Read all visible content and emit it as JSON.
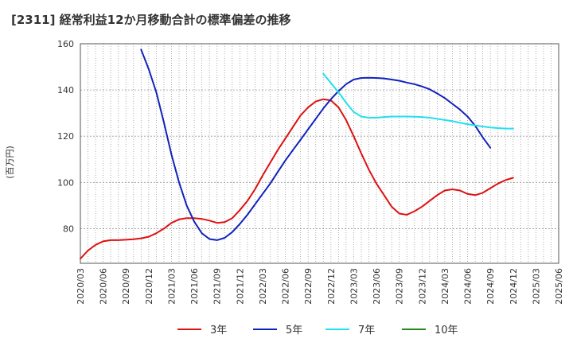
{
  "chart_data": {
    "type": "line",
    "title": "[2311]  経常利益12か月移動合計の標準偏差の推移",
    "ylabel": "(百万円)",
    "xlabel": "",
    "ylim": [
      65,
      160
    ],
    "yticks": [
      80,
      100,
      120,
      140,
      160
    ],
    "xticks": [
      "2020/03",
      "2020/06",
      "2020/09",
      "2020/12",
      "2021/03",
      "2021/06",
      "2021/09",
      "2021/12",
      "2022/03",
      "2022/06",
      "2022/09",
      "2022/12",
      "2023/03",
      "2023/06",
      "2023/09",
      "2023/12",
      "2024/03",
      "2024/06",
      "2024/09",
      "2024/12",
      "2025/03",
      "2025/06"
    ],
    "grid": true,
    "legend_position": "bottom",
    "series": [
      {
        "name": "3年",
        "color": "#dd1111",
        "points": [
          [
            "2020/03",
            67
          ],
          [
            "2020/04",
            70.5
          ],
          [
            "2020/05",
            73
          ],
          [
            "2020/06",
            74.5
          ],
          [
            "2020/07",
            75
          ],
          [
            "2020/08",
            75
          ],
          [
            "2020/09",
            75.2
          ],
          [
            "2020/10",
            75.4
          ],
          [
            "2020/11",
            75.8
          ],
          [
            "2020/12",
            76.5
          ],
          [
            "2021/01",
            78
          ],
          [
            "2021/02",
            80
          ],
          [
            "2021/03",
            82.5
          ],
          [
            "2021/04",
            84
          ],
          [
            "2021/05",
            84.5
          ],
          [
            "2021/06",
            84.5
          ],
          [
            "2021/07",
            84.2
          ],
          [
            "2021/08",
            83.5
          ],
          [
            "2021/09",
            82.5
          ],
          [
            "2021/10",
            82.8
          ],
          [
            "2021/11",
            84.5
          ],
          [
            "2021/12",
            88
          ],
          [
            "2022/01",
            92
          ],
          [
            "2022/02",
            97
          ],
          [
            "2022/03",
            103
          ],
          [
            "2022/04",
            108.5
          ],
          [
            "2022/05",
            114
          ],
          [
            "2022/06",
            119
          ],
          [
            "2022/07",
            124
          ],
          [
            "2022/08",
            129
          ],
          [
            "2022/09",
            132.5
          ],
          [
            "2022/10",
            135
          ],
          [
            "2022/11",
            136
          ],
          [
            "2022/12",
            135.5
          ],
          [
            "2023/01",
            132.5
          ],
          [
            "2023/02",
            127
          ],
          [
            "2023/03",
            120
          ],
          [
            "2023/04",
            112.5
          ],
          [
            "2023/05",
            105.5
          ],
          [
            "2023/06",
            99.5
          ],
          [
            "2023/07",
            94.5
          ],
          [
            "2023/08",
            89.5
          ],
          [
            "2023/09",
            86.5
          ],
          [
            "2023/10",
            86
          ],
          [
            "2023/11",
            87.5
          ],
          [
            "2023/12",
            89.5
          ],
          [
            "2024/01",
            92
          ],
          [
            "2024/02",
            94.5
          ],
          [
            "2024/03",
            96.5
          ],
          [
            "2024/04",
            97
          ],
          [
            "2024/05",
            96.5
          ],
          [
            "2024/06",
            95
          ],
          [
            "2024/07",
            94.5
          ],
          [
            "2024/08",
            95.5
          ],
          [
            "2024/09",
            97.5
          ],
          [
            "2024/10",
            99.5
          ],
          [
            "2024/11",
            101
          ],
          [
            "2024/12",
            102
          ]
        ]
      },
      {
        "name": "5年",
        "color": "#1122bb",
        "points": [
          [
            "2020/11",
            157.5
          ],
          [
            "2020/12",
            149
          ],
          [
            "2021/01",
            139
          ],
          [
            "2021/02",
            126
          ],
          [
            "2021/03",
            112
          ],
          [
            "2021/04",
            100
          ],
          [
            "2021/05",
            90
          ],
          [
            "2021/06",
            83
          ],
          [
            "2021/07",
            78
          ],
          [
            "2021/08",
            75.5
          ],
          [
            "2021/09",
            75
          ],
          [
            "2021/10",
            76
          ],
          [
            "2021/11",
            78.5
          ],
          [
            "2021/12",
            82
          ],
          [
            "2022/01",
            86
          ],
          [
            "2022/02",
            90.5
          ],
          [
            "2022/03",
            95
          ],
          [
            "2022/04",
            99.5
          ],
          [
            "2022/05",
            104.5
          ],
          [
            "2022/06",
            109.5
          ],
          [
            "2022/07",
            114
          ],
          [
            "2022/08",
            118.5
          ],
          [
            "2022/09",
            123
          ],
          [
            "2022/10",
            127.5
          ],
          [
            "2022/11",
            132
          ],
          [
            "2022/12",
            136
          ],
          [
            "2023/01",
            139.5
          ],
          [
            "2023/02",
            142.5
          ],
          [
            "2023/03",
            144.5
          ],
          [
            "2023/04",
            145.2
          ],
          [
            "2023/05",
            145.3
          ],
          [
            "2023/06",
            145.2
          ],
          [
            "2023/07",
            145
          ],
          [
            "2023/08",
            144.5
          ],
          [
            "2023/09",
            144
          ],
          [
            "2023/10",
            143.2
          ],
          [
            "2023/11",
            142.5
          ],
          [
            "2023/12",
            141.5
          ],
          [
            "2024/01",
            140.3
          ],
          [
            "2024/02",
            138.5
          ],
          [
            "2024/03",
            136.5
          ],
          [
            "2024/04",
            134
          ],
          [
            "2024/05",
            131.5
          ],
          [
            "2024/06",
            128.5
          ],
          [
            "2024/07",
            124.5
          ],
          [
            "2024/08",
            119.5
          ],
          [
            "2024/09",
            115
          ]
        ]
      },
      {
        "name": "7年",
        "color": "#22e0ee",
        "points": [
          [
            "2022/11",
            147
          ],
          [
            "2022/12",
            143
          ],
          [
            "2023/01",
            139
          ],
          [
            "2023/02",
            134.5
          ],
          [
            "2023/03",
            130.5
          ],
          [
            "2023/04",
            128.5
          ],
          [
            "2023/05",
            128
          ],
          [
            "2023/06",
            128
          ],
          [
            "2023/07",
            128.3
          ],
          [
            "2023/08",
            128.5
          ],
          [
            "2023/09",
            128.5
          ],
          [
            "2023/10",
            128.5
          ],
          [
            "2023/11",
            128.4
          ],
          [
            "2023/12",
            128.3
          ],
          [
            "2024/01",
            128
          ],
          [
            "2024/02",
            127.5
          ],
          [
            "2024/03",
            127
          ],
          [
            "2024/04",
            126.5
          ],
          [
            "2024/05",
            125.8
          ],
          [
            "2024/06",
            125.2
          ],
          [
            "2024/07",
            124.7
          ],
          [
            "2024/08",
            124.2
          ],
          [
            "2024/09",
            123.8
          ],
          [
            "2024/10",
            123.5
          ],
          [
            "2024/11",
            123.3
          ],
          [
            "2024/12",
            123.3
          ]
        ]
      },
      {
        "name": "10年",
        "color": "#228822",
        "points": []
      }
    ]
  }
}
